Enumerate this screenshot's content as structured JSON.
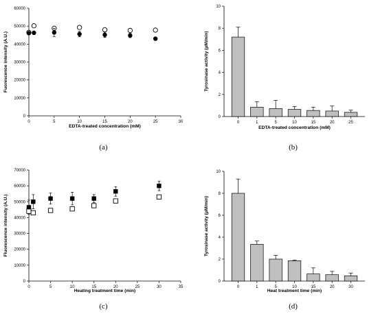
{
  "chart_data": [
    {
      "type": "scatter",
      "panel_label": "(a)",
      "xlabel": "EDTA-treated concentration (mM)",
      "ylabel": "Fuorescence intensity (A.U.)",
      "xlim": [
        0,
        30
      ],
      "ylim": [
        0,
        60000
      ],
      "xticks": [
        "0",
        "5",
        "10",
        "15",
        "20",
        "25",
        "30"
      ],
      "yticks": [
        "0",
        "10000",
        "20000",
        "30000",
        "40000",
        "50000",
        "60000"
      ],
      "series": [
        {
          "marker": "open-circle",
          "x": [
            0,
            1,
            5,
            10,
            15,
            20,
            25
          ],
          "y": [
            46500,
            50200,
            48800,
            49300,
            48000,
            47600,
            47800
          ],
          "err": [
            0,
            0,
            0,
            0,
            0,
            0,
            0
          ]
        },
        {
          "marker": "filled-circle",
          "x": [
            0,
            1,
            5,
            10,
            15,
            20,
            25
          ],
          "y": [
            46100,
            46300,
            46500,
            45600,
            45200,
            44800,
            43000
          ],
          "err": [
            0,
            0,
            2300,
            1500,
            1500,
            1200,
            0
          ]
        }
      ]
    },
    {
      "type": "bar",
      "panel_label": "(b)",
      "xlabel": "EDTA-treated concentration (mM)",
      "ylabel": "Tyrosinase activity (μM/min)",
      "ylim": [
        0,
        10
      ],
      "yticks": [
        "0",
        "2",
        "4",
        "6",
        "8",
        "10"
      ],
      "categories": [
        "0",
        "1",
        "5",
        "10",
        "15",
        "20",
        "25"
      ],
      "values": [
        7.2,
        0.85,
        0.72,
        0.65,
        0.55,
        0.5,
        0.38
      ],
      "errors": [
        0.9,
        0.5,
        0.75,
        0.25,
        0.3,
        0.45,
        0.2
      ]
    },
    {
      "type": "scatter",
      "panel_label": "(c)",
      "xlabel": "Heating treatment time (min)",
      "ylabel": "Fluorescence intensity (A.U.)",
      "xlim": [
        0,
        35
      ],
      "ylim": [
        0,
        70000
      ],
      "xticks": [
        "0",
        "5",
        "10",
        "15",
        "20",
        "25",
        "30",
        "35"
      ],
      "yticks": [
        "0",
        "10000",
        "20000",
        "30000",
        "40000",
        "50000",
        "60000",
        "70000"
      ],
      "series": [
        {
          "marker": "filled-square",
          "x": [
            0,
            1,
            5,
            10,
            15,
            20,
            30
          ],
          "y": [
            46500,
            50000,
            52000,
            52000,
            52000,
            56500,
            60000
          ],
          "err": [
            4500,
            4500,
            3500,
            4000,
            2500,
            3000,
            3000
          ]
        },
        {
          "marker": "open-square",
          "x": [
            0,
            1,
            5,
            10,
            15,
            20,
            30
          ],
          "y": [
            44000,
            43000,
            44500,
            45500,
            47500,
            50500,
            53000
          ],
          "err": [
            0,
            0,
            0,
            0,
            0,
            0,
            0
          ]
        }
      ]
    },
    {
      "type": "bar",
      "panel_label": "(d)",
      "xlabel": "Heat treatment time (min)",
      "ylabel": "Tyrosinase activity (μM/min)",
      "ylim": [
        0,
        10
      ],
      "yticks": [
        "0",
        "2",
        "4",
        "6",
        "8",
        "10"
      ],
      "categories": [
        "0",
        "1",
        "5",
        "10",
        "15",
        "20",
        "30"
      ],
      "values": [
        8.0,
        3.35,
        2.0,
        1.85,
        0.65,
        0.58,
        0.48
      ],
      "errors": [
        1.3,
        0.3,
        0.35,
        0.07,
        0.55,
        0.3,
        0.25
      ]
    }
  ],
  "colors": {
    "bar_fill": "#bfbfbf",
    "ink": "#000000"
  }
}
